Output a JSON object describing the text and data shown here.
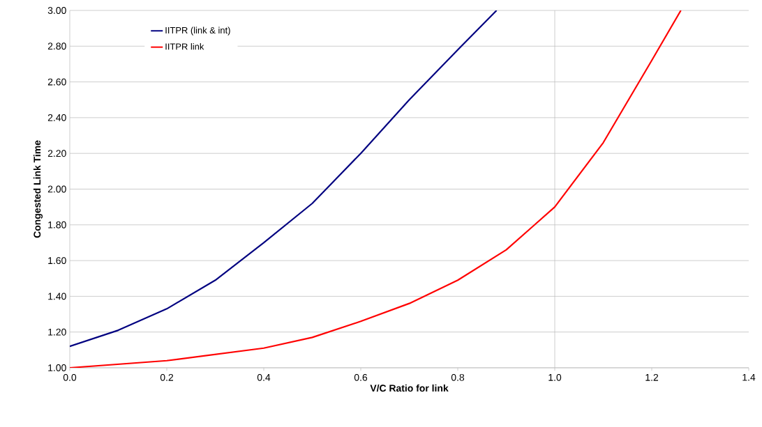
{
  "chart_data": {
    "type": "line",
    "xlabel": "V/C Ratio for link",
    "ylabel": "Congested Link Time",
    "xlim": [
      0,
      1.4
    ],
    "ylim": [
      1,
      3
    ],
    "xticks": [
      {
        "value": 0,
        "label": "0.0"
      },
      {
        "value": 0.2,
        "label": "0.2"
      },
      {
        "value": 0.4,
        "label": "0.4"
      },
      {
        "value": 0.6,
        "label": "0.6"
      },
      {
        "value": 0.8,
        "label": "0.8"
      },
      {
        "value": 1.0,
        "label": "1.0"
      },
      {
        "value": 1.2,
        "label": "1.2"
      },
      {
        "value": 1.4,
        "label": "1.4"
      }
    ],
    "yticks": [
      {
        "value": 1,
        "label": "1.00"
      },
      {
        "value": 1.2,
        "label": "1.20"
      },
      {
        "value": 1.4,
        "label": "1.40"
      },
      {
        "value": 1.6,
        "label": "1.60"
      },
      {
        "value": 1.8,
        "label": "1.80"
      },
      {
        "value": 2,
        "label": "2.00"
      },
      {
        "value": 2.2,
        "label": "2.20"
      },
      {
        "value": 2.4,
        "label": "2.40"
      },
      {
        "value": 2.6,
        "label": "2.60"
      },
      {
        "value": 2.8,
        "label": "2.80"
      },
      {
        "value": 3,
        "label": "3.00"
      }
    ],
    "grid": "y",
    "legend": "top left",
    "marker": "none",
    "line_style": "solid",
    "ref_lines": [
      {
        "axis": "x",
        "value": 1.0,
        "color": "#c0c0c0"
      }
    ],
    "series": [
      {
        "name": "IITPR (link & int)",
        "color": "#000080",
        "x": [
          0,
          0.1,
          0.2,
          0.3,
          0.4,
          0.5,
          0.6,
          0.7,
          0.8,
          0.88
        ],
        "values": [
          1.12,
          1.21,
          1.33,
          1.49,
          1.7,
          1.92,
          2.2,
          2.5,
          2.78,
          3.0
        ]
      },
      {
        "name": "IITPR link",
        "color": "#ff0000",
        "x": [
          0,
          0.2,
          0.4,
          0.5,
          0.6,
          0.7,
          0.8,
          0.9,
          1.0,
          1.1,
          1.2,
          1.26
        ],
        "values": [
          1.0,
          1.04,
          1.11,
          1.17,
          1.26,
          1.36,
          1.49,
          1.66,
          1.9,
          2.26,
          2.72,
          3.0
        ]
      }
    ]
  }
}
